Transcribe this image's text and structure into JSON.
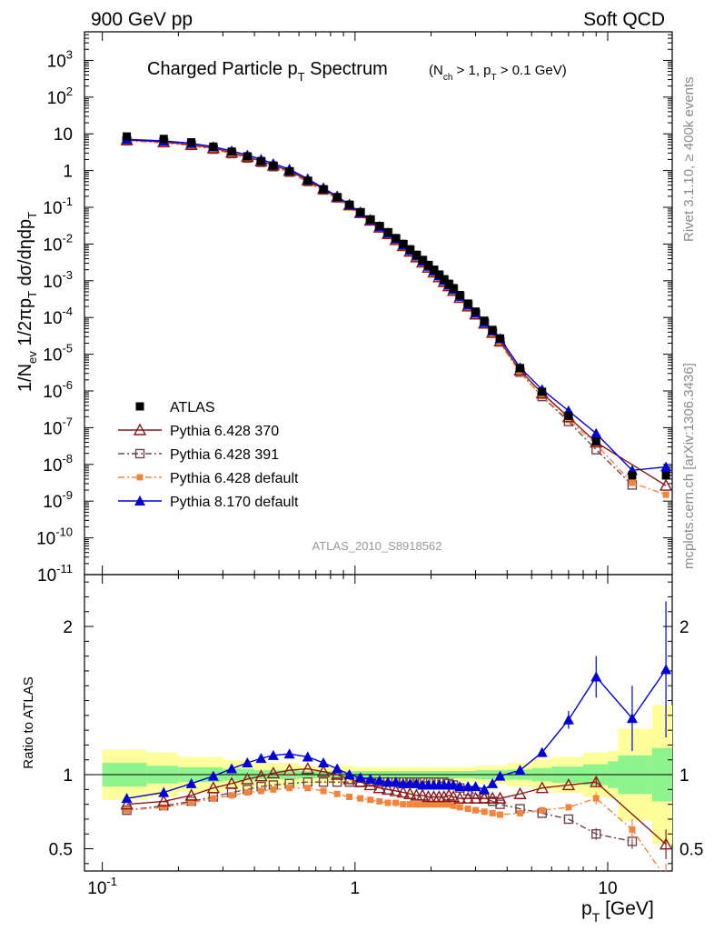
{
  "header": {
    "left": "900 GeV pp",
    "right": "Soft QCD"
  },
  "side_text": {
    "top": "Rivet 3.1.10, ≥ 400k events",
    "bottom": "mcplots.cern.ch [arXiv:1306.3436]"
  },
  "chart_data": {
    "type": "scatter",
    "title_main": "Charged Particle p",
    "title_main_sub": "T",
    "title_main_tail": " Spectrum",
    "title_cond": "(N",
    "title_cond_sub1": "ch",
    "title_cond_mid": " > 1, p",
    "title_cond_sub2": "T",
    "title_cond_tail": " > 0.1 GeV)",
    "ylabel_upper": "1/N_ev 1/2πp_T dσ/dηdp_T",
    "ylabel_lower": "Ratio to ATLAS",
    "xlabel": "p_T  [GeV]",
    "analysis_id": "ATLAS_2010_S8918562",
    "x_scale": "log",
    "xlim": [
      0.085,
      18
    ],
    "upper_yscale": "log",
    "upper_ylim": [
      1e-11,
      6000
    ],
    "lower_ylim": [
      0.35,
      2.35
    ],
    "legend_position": "lower-left",
    "x": [
      0.125,
      0.175,
      0.225,
      0.275,
      0.325,
      0.375,
      0.425,
      0.475,
      0.55,
      0.65,
      0.75,
      0.85,
      0.95,
      1.05,
      1.15,
      1.25,
      1.35,
      1.45,
      1.55,
      1.65,
      1.75,
      1.85,
      1.95,
      2.05,
      2.15,
      2.25,
      2.35,
      2.45,
      2.6,
      2.8,
      3.0,
      3.25,
      3.5,
      3.75,
      4.5,
      5.5,
      7.0,
      9.0,
      12.5,
      17.0
    ],
    "series": [
      {
        "name": "ATLAS",
        "upper": [
          8.5,
          7.3,
          5.9,
          4.5,
          3.3,
          2.45,
          1.82,
          1.37,
          0.96,
          0.53,
          0.31,
          0.19,
          0.118,
          0.074,
          0.047,
          0.031,
          0.021,
          0.0145,
          0.0101,
          0.0072,
          0.0051,
          0.0037,
          0.0027,
          0.002,
          0.00148,
          0.0011,
          0.00083,
          0.00063,
          0.00041,
          0.00024,
          0.000145,
          8.2e-05,
          4.6e-05,
          2.7e-05,
          4.2e-06,
          9.5e-07,
          2.1e-07,
          4.2e-08,
          5e-09,
          5e-09
        ]
      },
      {
        "name": "Pythia 6.428 370",
        "ratio": [
          0.8,
          0.82,
          0.86,
          0.91,
          0.94,
          0.97,
          0.99,
          1.01,
          1.03,
          1.04,
          1.02,
          1.0,
          0.97,
          0.95,
          0.93,
          0.91,
          0.9,
          0.89,
          0.88,
          0.87,
          0.86,
          0.86,
          0.85,
          0.85,
          0.85,
          0.85,
          0.86,
          0.85,
          0.84,
          0.84,
          0.84,
          0.84,
          0.84,
          0.84,
          0.87,
          0.91,
          0.93,
          0.95,
          null,
          0.53
        ],
        "ratio_err": [
          0,
          0,
          0,
          0,
          0,
          0,
          0,
          0,
          0,
          0,
          0,
          0,
          0,
          0,
          0,
          0,
          0,
          0,
          0,
          0,
          0,
          0,
          0,
          0,
          0,
          0,
          0,
          0,
          0,
          0,
          0,
          0,
          0,
          0,
          0,
          0,
          0,
          0.03,
          null,
          0.1
        ]
      },
      {
        "name": "Pythia 6.428 391",
        "ratio": [
          0.76,
          0.79,
          0.82,
          0.85,
          0.88,
          0.9,
          0.92,
          0.93,
          0.94,
          0.95,
          0.95,
          0.95,
          0.95,
          0.95,
          0.95,
          0.95,
          0.95,
          0.95,
          0.95,
          0.95,
          0.95,
          0.95,
          0.95,
          0.95,
          0.95,
          0.95,
          0.94,
          0.93,
          0.91,
          0.89,
          0.87,
          0.84,
          0.82,
          0.8,
          0.77,
          0.74,
          0.7,
          0.6,
          0.55,
          null
        ],
        "ratio_err": [
          0,
          0,
          0,
          0,
          0,
          0,
          0,
          0,
          0,
          0,
          0,
          0,
          0,
          0,
          0,
          0,
          0,
          0,
          0,
          0,
          0,
          0,
          0,
          0,
          0,
          0,
          0,
          0,
          0,
          0,
          0,
          0,
          0,
          0,
          0,
          0,
          0,
          0.04,
          0.05,
          null
        ]
      },
      {
        "name": "Pythia 6.428 default",
        "ratio": [
          0.76,
          0.78,
          0.81,
          0.84,
          0.86,
          0.88,
          0.89,
          0.9,
          0.91,
          0.91,
          0.89,
          0.87,
          0.85,
          0.84,
          0.83,
          0.82,
          0.81,
          0.81,
          0.8,
          0.8,
          0.8,
          0.8,
          0.8,
          0.8,
          0.8,
          0.8,
          0.8,
          0.79,
          0.78,
          0.77,
          0.76,
          0.75,
          0.74,
          0.73,
          0.74,
          0.76,
          0.78,
          0.84,
          0.63,
          0.3
        ],
        "ratio_err": [
          0,
          0,
          0,
          0,
          0,
          0,
          0,
          0,
          0,
          0,
          0,
          0,
          0,
          0,
          0,
          0,
          0,
          0,
          0,
          0,
          0,
          0,
          0,
          0,
          0,
          0,
          0,
          0,
          0,
          0,
          0,
          0,
          0,
          0,
          0,
          0,
          0,
          0.04,
          0.07,
          0.1
        ]
      },
      {
        "name": "Pythia 8.170 default",
        "ratio": [
          0.84,
          0.88,
          0.94,
          0.99,
          1.04,
          1.08,
          1.11,
          1.13,
          1.14,
          1.12,
          1.08,
          1.04,
          1.0,
          0.98,
          0.97,
          0.96,
          0.95,
          0.95,
          0.94,
          0.94,
          0.94,
          0.93,
          0.93,
          0.93,
          0.93,
          0.93,
          0.93,
          0.93,
          0.92,
          0.92,
          0.92,
          0.9,
          0.94,
          0.99,
          1.03,
          1.15,
          1.37,
          1.66,
          1.38,
          1.71
        ],
        "ratio_err": [
          0,
          0,
          0,
          0,
          0,
          0,
          0,
          0,
          0,
          0,
          0,
          0,
          0,
          0,
          0,
          0,
          0,
          0,
          0,
          0,
          0,
          0,
          0,
          0,
          0,
          0,
          0,
          0,
          0,
          0,
          0,
          0,
          0,
          0,
          0,
          0,
          0.06,
          0.14,
          0.22,
          0.46
        ]
      }
    ],
    "bands": {
      "edges": [
        0.1,
        0.15,
        0.2,
        0.3,
        0.4,
        0.6,
        1.0,
        2.0,
        3.0,
        4.0,
        5.0,
        6.0,
        8.0,
        10.0,
        11.0,
        15.0,
        20.0
      ],
      "stat": [
        0.08,
        0.06,
        0.05,
        0.04,
        0.03,
        0.025,
        0.025,
        0.025,
        0.03,
        0.035,
        0.045,
        0.055,
        0.07,
        0.09,
        0.13,
        0.18
      ],
      "total": [
        0.17,
        0.15,
        0.12,
        0.1,
        0.08,
        0.06,
        0.05,
        0.05,
        0.06,
        0.08,
        0.1,
        0.12,
        0.15,
        0.16,
        0.31,
        0.47
      ]
    },
    "colors": {
      "ATLAS": "#000000",
      "Pythia 6.428 370": "#8b1a1a",
      "Pythia 6.428 391": "#6e4450",
      "Pythia 6.428 default": "#f4843c",
      "Pythia 8.170 default": "#0000d8",
      "band_stat": "#8ef58e",
      "band_total": "#fefe9a"
    },
    "upper_ticks": [
      "10^{-11}",
      "10^{-10}",
      "10^{-9}",
      "10^{-8}",
      "10^{-7}",
      "10^{-6}",
      "10^{-5}",
      "10^{-4}",
      "10^{-3}",
      "10^{-2}",
      "10^{-1}",
      "1",
      "10",
      "10^{2}",
      "10^{3}"
    ],
    "lower_ticks": [
      "0.5",
      "1",
      "2"
    ],
    "x_ticks": [
      "10^{-1}",
      "1",
      "10"
    ]
  }
}
